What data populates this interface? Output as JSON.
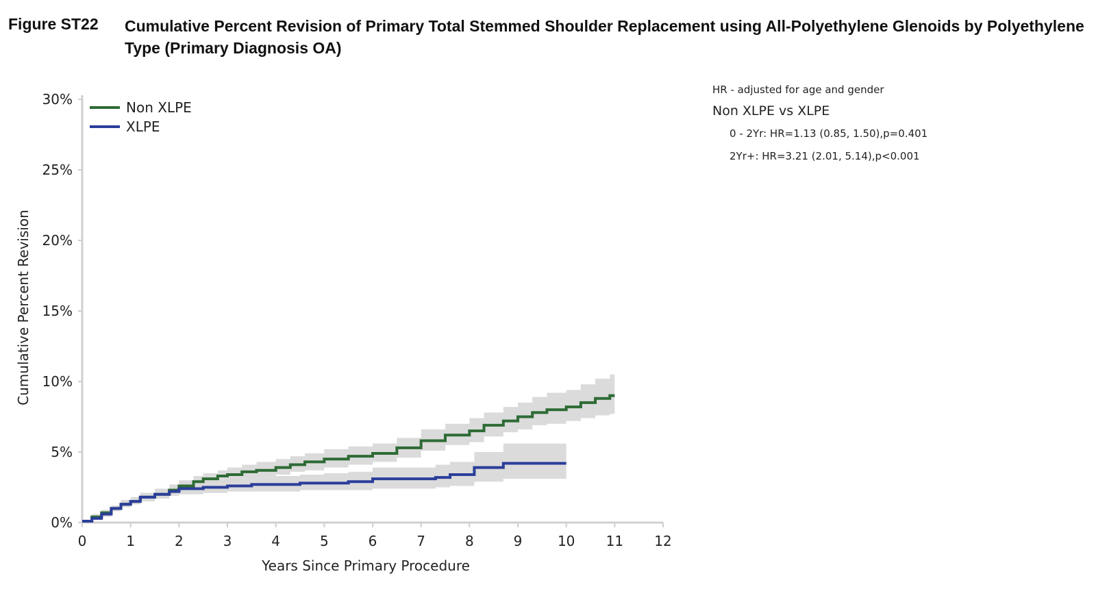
{
  "figure": {
    "label": "Figure ST22",
    "title": "Cumulative Percent Revision of Primary Total Stemmed Shoulder Replacement using All-Polyethylene Glenoids by Polyethylene Type (Primary Diagnosis OA)"
  },
  "hr_panel": {
    "note": "HR - adjusted for age and gender",
    "comparison": "Non XLPE vs XLPE",
    "lines": [
      "0 - 2Yr: HR=1.13 (0.85, 1.50),p=0.401",
      "2Yr+: HR=3.21 (2.01, 5.14),p<0.001"
    ]
  },
  "chart_data": {
    "type": "line",
    "step": true,
    "title": "",
    "xlabel": "Years Since Primary Procedure",
    "ylabel": "Cumulative Percent Revision",
    "xlim": [
      0,
      12
    ],
    "ylim": [
      0,
      30
    ],
    "xticks": [
      "0",
      "1",
      "2",
      "3",
      "4",
      "5",
      "6",
      "7",
      "8",
      "9",
      "10",
      "11",
      "12"
    ],
    "yticks": [
      "0%",
      "5%",
      "10%",
      "15%",
      "20%",
      "25%",
      "30%"
    ],
    "grid": false,
    "legend_position": "top-left",
    "series": [
      {
        "name": "Non XLPE",
        "color": "#2e6b35",
        "ci_color": "#d9d9d9",
        "x": [
          0,
          0.2,
          0.4,
          0.6,
          0.8,
          1.0,
          1.2,
          1.5,
          1.8,
          2.0,
          2.3,
          2.5,
          2.8,
          3.0,
          3.3,
          3.6,
          4.0,
          4.3,
          4.6,
          5.0,
          5.5,
          6.0,
          6.5,
          7.0,
          7.5,
          8.0,
          8.3,
          8.7,
          9.0,
          9.3,
          9.6,
          10.0,
          10.3,
          10.6,
          10.9,
          11.0
        ],
        "y": [
          0.1,
          0.4,
          0.7,
          1.0,
          1.3,
          1.5,
          1.8,
          2.0,
          2.3,
          2.6,
          2.9,
          3.1,
          3.3,
          3.4,
          3.6,
          3.7,
          3.9,
          4.1,
          4.3,
          4.5,
          4.7,
          4.9,
          5.3,
          5.8,
          6.2,
          6.5,
          6.9,
          7.2,
          7.5,
          7.8,
          8.0,
          8.2,
          8.5,
          8.8,
          9.0,
          9.0
        ],
        "lower": [
          0.0,
          0.3,
          0.5,
          0.8,
          1.1,
          1.3,
          1.6,
          1.7,
          2.0,
          2.2,
          2.5,
          2.7,
          2.8,
          2.9,
          3.1,
          3.2,
          3.4,
          3.6,
          3.7,
          3.9,
          4.1,
          4.3,
          4.6,
          5.1,
          5.5,
          5.7,
          6.1,
          6.4,
          6.6,
          6.9,
          7.0,
          7.2,
          7.4,
          7.6,
          7.7,
          7.7
        ],
        "upper": [
          0.2,
          0.6,
          0.9,
          1.2,
          1.6,
          1.8,
          2.1,
          2.4,
          2.7,
          3.0,
          3.3,
          3.5,
          3.7,
          3.9,
          4.1,
          4.3,
          4.5,
          4.7,
          4.9,
          5.2,
          5.4,
          5.6,
          6.0,
          6.6,
          7.0,
          7.4,
          7.8,
          8.2,
          8.5,
          8.9,
          9.2,
          9.4,
          9.8,
          10.2,
          10.5,
          10.5
        ]
      },
      {
        "name": "XLPE",
        "color": "#2b3e9a",
        "ci_color": "#d9d9d9",
        "x": [
          0,
          0.2,
          0.4,
          0.6,
          0.8,
          1.0,
          1.2,
          1.5,
          1.8,
          2.0,
          2.5,
          3.0,
          3.5,
          4.0,
          4.5,
          5.0,
          5.5,
          6.0,
          6.5,
          7.0,
          7.3,
          7.6,
          8.0,
          8.1,
          8.7,
          9.0,
          9.5,
          10.0
        ],
        "y": [
          0.1,
          0.3,
          0.6,
          1.0,
          1.3,
          1.5,
          1.8,
          2.0,
          2.2,
          2.4,
          2.5,
          2.6,
          2.7,
          2.7,
          2.8,
          2.8,
          2.9,
          3.1,
          3.1,
          3.1,
          3.2,
          3.4,
          3.4,
          3.9,
          4.2,
          4.2,
          4.2,
          4.2
        ],
        "lower": [
          0.0,
          0.2,
          0.4,
          0.8,
          1.1,
          1.3,
          1.5,
          1.7,
          1.9,
          2.0,
          2.1,
          2.2,
          2.2,
          2.2,
          2.3,
          2.3,
          2.3,
          2.4,
          2.4,
          2.4,
          2.5,
          2.6,
          2.6,
          2.9,
          3.1,
          3.1,
          3.1,
          3.1
        ],
        "upper": [
          0.2,
          0.5,
          0.8,
          1.2,
          1.5,
          1.8,
          2.1,
          2.3,
          2.5,
          2.8,
          3.0,
          3.1,
          3.2,
          3.3,
          3.4,
          3.5,
          3.6,
          3.9,
          3.9,
          3.9,
          4.1,
          4.3,
          4.3,
          5.0,
          5.6,
          5.6,
          5.6,
          5.6
        ]
      }
    ]
  }
}
